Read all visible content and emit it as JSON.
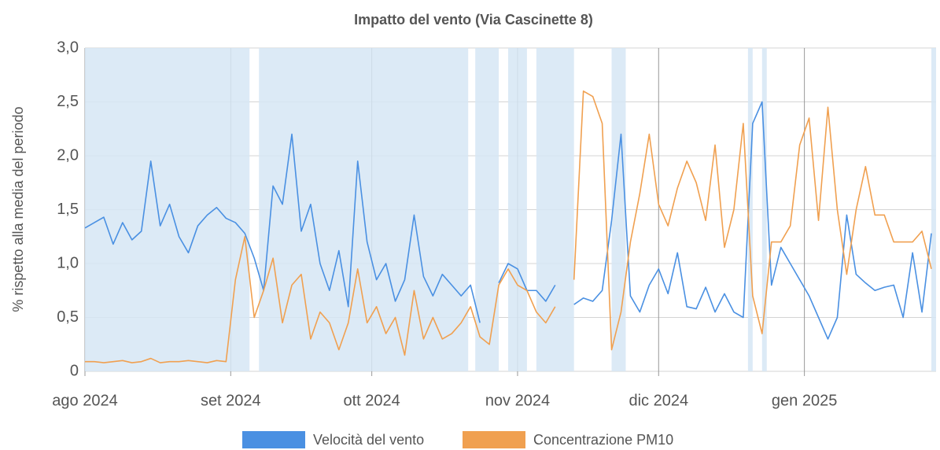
{
  "chart_data": {
    "type": "line",
    "title": "Impatto del vento (Via Cascinette 8)",
    "y_label": "% rispetto alla media del periodo",
    "x": [
      0,
      2,
      4,
      6,
      8,
      10,
      12,
      14,
      16,
      18,
      20,
      22,
      24,
      26,
      28,
      30,
      32,
      34,
      36,
      38,
      40,
      42,
      44,
      46,
      48,
      50,
      52,
      54,
      56,
      58,
      60,
      62,
      64,
      66,
      68,
      70,
      72,
      74,
      76,
      78,
      80,
      82,
      84,
      86,
      88,
      90,
      92,
      94,
      96,
      98,
      100,
      102,
      104,
      106,
      108,
      110,
      112,
      114,
      116,
      118,
      120,
      122,
      124,
      126,
      128,
      130,
      132,
      134,
      136,
      138,
      140,
      142,
      144,
      146,
      148,
      150,
      152,
      154,
      156,
      158,
      160,
      162,
      164,
      166,
      168,
      170,
      172,
      174,
      176,
      178,
      180
    ],
    "series": [
      {
        "name": "Velocità del vento",
        "color": "#4a90e2",
        "values": [
          1.33,
          1.38,
          1.43,
          1.18,
          1.38,
          1.22,
          1.3,
          1.95,
          1.35,
          1.55,
          1.25,
          1.1,
          1.35,
          1.45,
          1.52,
          1.42,
          1.38,
          1.28,
          1.05,
          0.75,
          1.72,
          1.55,
          2.2,
          1.3,
          1.55,
          1.0,
          0.75,
          1.12,
          0.6,
          1.95,
          1.2,
          0.85,
          1.0,
          0.65,
          0.85,
          1.45,
          0.88,
          0.7,
          0.9,
          0.8,
          0.7,
          0.8,
          0.45,
          null,
          0.82,
          1.0,
          0.95,
          0.75,
          0.75,
          0.65,
          0.8,
          null,
          0.62,
          0.68,
          0.65,
          0.75,
          1.4,
          2.2,
          0.7,
          0.55,
          0.8,
          0.95,
          0.72,
          1.1,
          0.6,
          0.58,
          0.78,
          0.55,
          0.72,
          0.55,
          0.5,
          2.3,
          2.5,
          0.8,
          1.15,
          1.0,
          0.85,
          0.7,
          0.5,
          0.3,
          0.5,
          1.45,
          0.9,
          0.82,
          0.75,
          0.78,
          0.8,
          0.5,
          1.1,
          0.55,
          1.28
        ]
      },
      {
        "name": "Concentrazione PM10",
        "color": "#f0a050",
        "values": [
          0.09,
          0.09,
          0.08,
          0.09,
          0.1,
          0.08,
          0.09,
          0.12,
          0.08,
          0.09,
          0.09,
          0.1,
          0.09,
          0.08,
          0.1,
          0.09,
          0.85,
          1.25,
          0.5,
          0.75,
          1.05,
          0.45,
          0.8,
          0.9,
          0.3,
          0.55,
          0.45,
          0.2,
          0.45,
          0.95,
          0.45,
          0.6,
          0.35,
          0.5,
          0.15,
          0.75,
          0.3,
          0.5,
          0.3,
          0.35,
          0.45,
          0.6,
          0.32,
          0.25,
          0.8,
          0.95,
          0.8,
          0.75,
          0.55,
          0.45,
          0.6,
          null,
          0.85,
          2.6,
          2.55,
          2.3,
          0.2,
          0.55,
          1.2,
          1.65,
          2.2,
          1.55,
          1.35,
          1.7,
          1.95,
          1.75,
          1.4,
          2.1,
          1.15,
          1.5,
          2.3,
          0.7,
          0.35,
          1.2,
          1.2,
          1.35,
          2.1,
          2.35,
          1.4,
          2.45,
          1.5,
          0.9,
          1.5,
          1.9,
          1.45,
          1.45,
          1.2,
          1.2,
          1.2,
          1.3,
          0.95
        ]
      }
    ],
    "bands": [
      [
        0,
        35
      ],
      [
        37,
        81.5
      ],
      [
        83,
        88
      ],
      [
        90,
        94
      ],
      [
        96,
        104
      ],
      [
        112,
        115
      ],
      [
        141,
        142
      ],
      [
        144,
        145
      ],
      [
        180,
        181
      ]
    ],
    "band_color": "#d6e6f5",
    "xlim": [
      0,
      181
    ],
    "xticks": [
      {
        "value": 0,
        "label": "ago 2024"
      },
      {
        "value": 31,
        "label": "set 2024"
      },
      {
        "value": 61,
        "label": "ott 2024"
      },
      {
        "value": 92,
        "label": "nov 2024"
      },
      {
        "value": 122,
        "label": "dic 2024"
      },
      {
        "value": 153,
        "label": "gen 2025"
      }
    ],
    "ylim": [
      0,
      3
    ],
    "yticks": [
      0,
      {
        "value": 0.5,
        "label": "0,5"
      },
      {
        "value": 1,
        "label": "1,0"
      },
      {
        "value": 1.5,
        "label": "1,5"
      },
      {
        "value": 2,
        "label": "2,0"
      },
      {
        "value": 2.5,
        "label": "2,5"
      },
      {
        "value": 3,
        "label": "3,0"
      }
    ],
    "grid": true,
    "legend": "bottom"
  }
}
